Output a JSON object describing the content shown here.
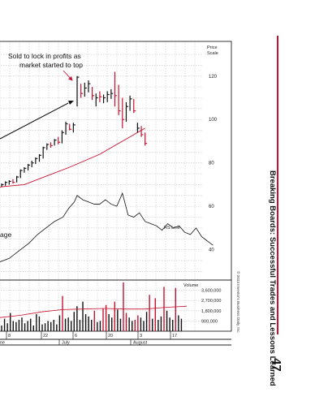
{
  "page": {
    "running_title": "Breaking Boards: Successful Trades and Lessons Learned",
    "page_number": "47",
    "copyright": "© 2013 Investor's Business Daily, Inc.",
    "accent_color": "#c8102e"
  },
  "chart_data": {
    "type": "bar",
    "price_panel": {
      "scale_label_1": "Price",
      "scale_label_2": "Scale",
      "y_ticks": [
        120,
        100,
        80,
        60,
        40
      ],
      "ylim": [
        26,
        136
      ],
      "annotation_1": "Sold to lock in profits as",
      "annotation_2": "market started to top",
      "annotation_left": "age",
      "rs_label": "RS Line",
      "bars": [
        {
          "i": 0,
          "h": 70.5,
          "l": 69,
          "c": 70,
          "up": true
        },
        {
          "i": 1,
          "h": 71.5,
          "l": 69.5,
          "c": 71,
          "up": true
        },
        {
          "i": 2,
          "h": 72,
          "l": 70,
          "c": 71.5,
          "up": true
        },
        {
          "i": 3,
          "h": 72.5,
          "l": 70.5,
          "c": 71,
          "up": false
        },
        {
          "i": 4,
          "h": 74,
          "l": 71,
          "c": 73.5,
          "up": true
        },
        {
          "i": 5,
          "h": 77,
          "l": 73,
          "c": 76.5,
          "up": true
        },
        {
          "i": 6,
          "h": 78,
          "l": 75.5,
          "c": 77.5,
          "up": true
        },
        {
          "i": 7,
          "h": 79.5,
          "l": 76.5,
          "c": 79,
          "up": true
        },
        {
          "i": 8,
          "h": 81,
          "l": 78,
          "c": 80,
          "up": true
        },
        {
          "i": 9,
          "h": 82.5,
          "l": 79.5,
          "c": 82,
          "up": true
        },
        {
          "i": 10,
          "h": 84,
          "l": 80.5,
          "c": 83.5,
          "up": true
        },
        {
          "i": 11,
          "h": 87.5,
          "l": 82,
          "c": 87,
          "up": true
        },
        {
          "i": 12,
          "h": 89,
          "l": 86,
          "c": 88.5,
          "up": true
        },
        {
          "i": 13,
          "h": 89.5,
          "l": 87,
          "c": 88,
          "up": false
        },
        {
          "i": 14,
          "h": 91,
          "l": 88,
          "c": 90.5,
          "up": true
        },
        {
          "i": 15,
          "h": 92,
          "l": 88.5,
          "c": 89.5,
          "up": false
        },
        {
          "i": 16,
          "h": 95,
          "l": 89,
          "c": 94,
          "up": true
        },
        {
          "i": 17,
          "h": 99,
          "l": 93,
          "c": 98,
          "up": true
        },
        {
          "i": 18,
          "h": 98,
          "l": 95,
          "c": 95.5,
          "up": false
        },
        {
          "i": 19,
          "h": 98.5,
          "l": 94,
          "c": 97.5,
          "up": true
        },
        {
          "i": 20,
          "h": 120,
          "l": 106,
          "c": 119.5,
          "up": true
        },
        {
          "i": 21,
          "h": 116.5,
          "l": 110,
          "c": 112,
          "up": false
        },
        {
          "i": 22,
          "h": 117,
          "l": 110.5,
          "c": 114.5,
          "up": true
        },
        {
          "i": 23,
          "h": 118,
          "l": 112.5,
          "c": 116.5,
          "up": true
        },
        {
          "i": 24,
          "h": 115,
          "l": 109,
          "c": 111,
          "up": false
        },
        {
          "i": 25,
          "h": 112,
          "l": 106,
          "c": 110,
          "up": true
        },
        {
          "i": 26,
          "h": 113,
          "l": 108,
          "c": 110.5,
          "up": false
        },
        {
          "i": 27,
          "h": 111.5,
          "l": 107.5,
          "c": 110,
          "up": true
        },
        {
          "i": 28,
          "h": 113,
          "l": 108,
          "c": 111.5,
          "up": true
        },
        {
          "i": 29,
          "h": 114,
          "l": 109.5,
          "c": 112,
          "up": true
        },
        {
          "i": 30,
          "h": 122,
          "l": 106,
          "c": 111,
          "up": false
        },
        {
          "i": 31,
          "h": 116,
          "l": 102,
          "c": 104,
          "up": false
        },
        {
          "i": 32,
          "h": 110,
          "l": 96,
          "c": 100,
          "up": false
        },
        {
          "i": 33,
          "h": 108,
          "l": 99,
          "c": 106,
          "up": true
        },
        {
          "i": 34,
          "h": 111,
          "l": 104,
          "c": 109.5,
          "up": true
        },
        {
          "i": 35,
          "h": 109.5,
          "l": 103,
          "c": 104,
          "up": false
        },
        {
          "i": 36,
          "h": 98.5,
          "l": 94,
          "c": 96,
          "up": true
        },
        {
          "i": 37,
          "h": 97,
          "l": 92,
          "c": 93,
          "up": false
        },
        {
          "i": 38,
          "h": 94,
          "l": 88,
          "c": 89,
          "up": false
        }
      ],
      "ma_line": [
        [
          -18,
          59
        ],
        [
          0,
          69
        ],
        [
          6,
          70
        ],
        [
          12,
          74
        ],
        [
          18,
          78
        ],
        [
          22,
          81
        ],
        [
          26,
          84
        ],
        [
          30,
          88
        ],
        [
          34,
          92
        ],
        [
          38,
          96
        ]
      ],
      "rs_line": [
        [
          -18,
          30
        ],
        [
          -10,
          33
        ],
        [
          -4,
          36
        ],
        [
          0,
          40
        ],
        [
          3,
          43
        ],
        [
          6,
          47
        ],
        [
          9,
          50
        ],
        [
          12,
          53
        ],
        [
          15,
          55
        ],
        [
          17,
          59
        ],
        [
          19,
          62
        ],
        [
          20,
          65
        ],
        [
          22,
          63
        ],
        [
          24,
          62
        ],
        [
          26,
          61
        ],
        [
          28,
          61
        ],
        [
          30,
          63
        ],
        [
          32,
          61
        ],
        [
          34,
          60
        ],
        [
          36,
          66
        ],
        [
          38,
          56
        ],
        [
          40,
          55
        ],
        [
          42,
          57
        ],
        [
          44,
          53
        ],
        [
          46,
          52
        ],
        [
          48,
          51
        ],
        [
          50,
          49
        ],
        [
          52,
          52
        ],
        [
          54,
          50
        ],
        [
          56,
          51
        ],
        [
          58,
          48
        ],
        [
          60,
          47
        ],
        [
          62,
          50
        ],
        [
          64,
          46
        ],
        [
          66,
          44
        ],
        [
          68,
          42
        ]
      ]
    },
    "volume_panel": {
      "label": "Volume",
      "y_ticks": [
        "3,600,000",
        "2,700,000",
        "1,800,000",
        "900,000"
      ],
      "tick_values": [
        3600000,
        2700000,
        1800000,
        900000
      ],
      "ylim": [
        0,
        4500000
      ],
      "values": [
        500000,
        1100000,
        700000,
        1600000,
        900000,
        800000,
        1000000,
        1200000,
        700000,
        900000,
        1100000,
        500000,
        1500000,
        1300000,
        600000,
        700000,
        900000,
        800000,
        1000000,
        600000,
        1400000,
        3100000,
        1100000,
        1200000,
        900000,
        1700000,
        2200000,
        1000000,
        2600000,
        1500000,
        1300000,
        1000000,
        1800000,
        800000,
        900000,
        2000000,
        2300000,
        1500000,
        1200000,
        2600000,
        1900000,
        1100000,
        4300000,
        1600000,
        1200000,
        900000,
        1000000,
        1400000,
        1200000,
        900000,
        1700000,
        3200000,
        1100000,
        2900000,
        1000000,
        1300000,
        3900000,
        1800000,
        1200000,
        1000000,
        3800000,
        1400000,
        1100000
      ],
      "red_indices": [
        21,
        32,
        35,
        36,
        39,
        42,
        43,
        46,
        47,
        51,
        53,
        56,
        60
      ],
      "ma_values": [
        1200000,
        1400000,
        1700000,
        1900000,
        1950000,
        2000000,
        1950000,
        1950000,
        2100000,
        2200000
      ]
    },
    "x_axis": {
      "ticks": [
        "8",
        "22",
        "6",
        "20",
        "3",
        "17"
      ],
      "months": [
        "ne",
        "July",
        "August"
      ]
    }
  }
}
